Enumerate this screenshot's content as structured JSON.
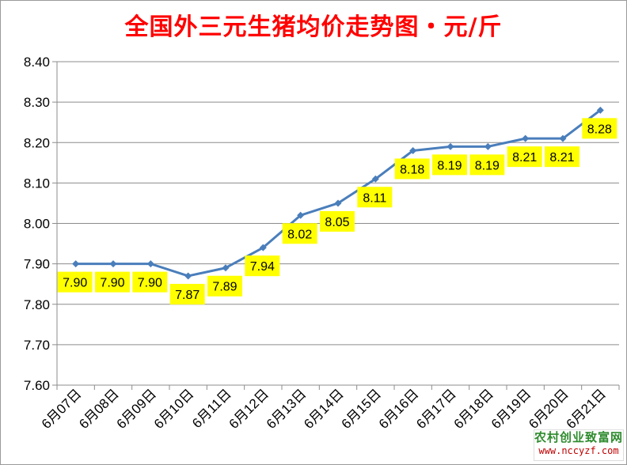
{
  "title": "全国外三元生猪均价走势图・元/斤",
  "colors": {
    "title": "#ff0000",
    "line": "#4a7ebb",
    "label_bg": "#ffff00",
    "grid": "#8c8c8c",
    "watermark_name": "#2e8b2e",
    "watermark_url": "#c00000"
  },
  "watermark": {
    "name": "农村创业致富网",
    "url": "www.nccyzf.com"
  },
  "chart_data": {
    "type": "line",
    "title": "全国外三元生猪均价走势图・元/斤",
    "xlabel": "",
    "ylabel": "",
    "categories": [
      "6月07日",
      "6月08日",
      "6月09日",
      "6月10日",
      "6月11日",
      "6月12日",
      "6月13日",
      "6月14日",
      "6月15日",
      "6月16日",
      "6月17日",
      "6月18日",
      "6月19日",
      "6月20日",
      "6月21日"
    ],
    "series": [
      {
        "values": [
          7.9,
          7.9,
          7.9,
          7.87,
          7.89,
          7.94,
          8.02,
          8.05,
          8.11,
          8.18,
          8.19,
          8.19,
          8.21,
          8.21,
          8.28
        ]
      }
    ],
    "data_labels": [
      "7.90",
      "7.90",
      "7.90",
      "7.87",
      "7.89",
      "7.94",
      "8.02",
      "8.05",
      "8.11",
      "8.18",
      "8.19",
      "8.19",
      "8.21",
      "8.21",
      "8.28"
    ],
    "ylim": [
      7.6,
      8.4
    ],
    "yticks": [
      "7.60",
      "7.70",
      "7.80",
      "7.90",
      "8.00",
      "8.10",
      "8.20",
      "8.30",
      "8.40"
    ],
    "grid": true,
    "legend": "none",
    "marker": "diamond"
  }
}
